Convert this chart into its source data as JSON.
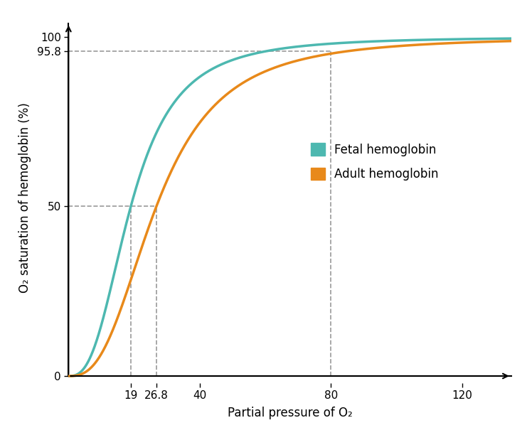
{
  "title": "",
  "xlabel": "Partial pressure of O₂",
  "ylabel": "O₂ saturation of hemoglobin (%)",
  "fetal_color": "#4DB8B0",
  "adult_color": "#E8891A",
  "fetal_label": "Fetal hemoglobin",
  "adult_label": "Adult hemoglobin",
  "fetal_p50": 19,
  "adult_p50": 26.8,
  "adult_p958": 80,
  "y_958": 95.8,
  "y_50": 50,
  "xlim": [
    0,
    135
  ],
  "ylim": [
    -2,
    107
  ],
  "xticks": [
    19,
    26.8,
    40,
    80,
    120
  ],
  "yticks": [
    0,
    50,
    95.8,
    100
  ],
  "background_color": "#FFFFFF",
  "dashed_color": "#999999",
  "n_fetal": 2.7,
  "P50_fetal": 19,
  "n_adult": 2.7,
  "P50_adult": 26.8,
  "sat_max": 100
}
